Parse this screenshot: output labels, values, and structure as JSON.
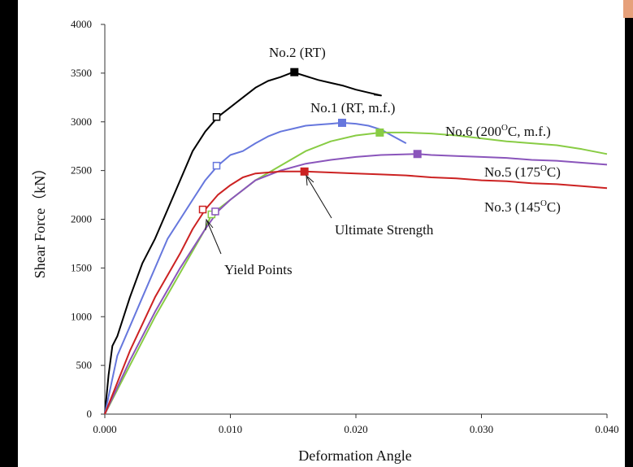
{
  "chart_data": {
    "type": "line",
    "xlabel": "Deformation Angle",
    "ylabel": "Shear Force（kN）",
    "xlim": [
      0,
      0.04
    ],
    "ylim": [
      0,
      4000
    ],
    "x_ticks": [
      "0.000",
      "0.010",
      "0.020",
      "0.030",
      "0.040"
    ],
    "y_ticks": [
      "0",
      "500",
      "1000",
      "1500",
      "2000",
      "2500",
      "3000",
      "3500",
      "4000"
    ],
    "grid": false,
    "series": [
      {
        "name": "No.2 (RT)",
        "color": "#000000",
        "points": [
          [
            0,
            0
          ],
          [
            0.0003,
            400
          ],
          [
            0.0006,
            700
          ],
          [
            0.001,
            800
          ],
          [
            0.002,
            1200
          ],
          [
            0.003,
            1550
          ],
          [
            0.004,
            1800
          ],
          [
            0.005,
            2100
          ],
          [
            0.006,
            2400
          ],
          [
            0.007,
            2700
          ],
          [
            0.008,
            2900
          ],
          [
            0.009,
            3050
          ],
          [
            0.01,
            3150
          ],
          [
            0.011,
            3250
          ],
          [
            0.012,
            3350
          ],
          [
            0.013,
            3420
          ],
          [
            0.014,
            3460
          ],
          [
            0.015,
            3510
          ],
          [
            0.016,
            3470
          ],
          [
            0.017,
            3430
          ],
          [
            0.018,
            3400
          ],
          [
            0.019,
            3370
          ],
          [
            0.02,
            3330
          ],
          [
            0.021,
            3300
          ],
          [
            0.022,
            3270
          ],
          [
            0.0215,
            3280
          ],
          [
            0.0215,
            3270
          ]
        ],
        "yield_point": [
          0.0089,
          3050
        ],
        "ultimate_point": [
          0.0151,
          3510
        ]
      },
      {
        "name": "No.1 (RT, m.f.)",
        "color": "#6677dd",
        "points": [
          [
            0,
            0
          ],
          [
            0.001,
            600
          ],
          [
            0.002,
            900
          ],
          [
            0.003,
            1200
          ],
          [
            0.004,
            1500
          ],
          [
            0.005,
            1800
          ],
          [
            0.006,
            2000
          ],
          [
            0.007,
            2200
          ],
          [
            0.008,
            2400
          ],
          [
            0.009,
            2550
          ],
          [
            0.01,
            2660
          ],
          [
            0.011,
            2700
          ],
          [
            0.012,
            2780
          ],
          [
            0.013,
            2850
          ],
          [
            0.014,
            2900
          ],
          [
            0.015,
            2930
          ],
          [
            0.016,
            2960
          ],
          [
            0.017,
            2970
          ],
          [
            0.018,
            2980
          ],
          [
            0.0189,
            2990
          ],
          [
            0.02,
            2980
          ],
          [
            0.021,
            2960
          ],
          [
            0.022,
            2920
          ],
          [
            0.023,
            2850
          ],
          [
            0.024,
            2780
          ]
        ],
        "yield_point": [
          0.0089,
          2550
        ],
        "ultimate_point": [
          0.0189,
          2990
        ]
      },
      {
        "name": "No.6 (200OC, m.f.)",
        "color": "#88cc44",
        "points": [
          [
            0,
            0
          ],
          [
            0.002,
            500
          ],
          [
            0.004,
            1000
          ],
          [
            0.006,
            1450
          ],
          [
            0.008,
            1900
          ],
          [
            0.0085,
            2050
          ],
          [
            0.01,
            2200
          ],
          [
            0.012,
            2400
          ],
          [
            0.014,
            2550
          ],
          [
            0.016,
            2700
          ],
          [
            0.018,
            2800
          ],
          [
            0.02,
            2860
          ],
          [
            0.022,
            2890
          ],
          [
            0.024,
            2890
          ],
          [
            0.026,
            2880
          ],
          [
            0.028,
            2860
          ],
          [
            0.03,
            2830
          ],
          [
            0.032,
            2800
          ],
          [
            0.034,
            2780
          ],
          [
            0.036,
            2760
          ],
          [
            0.038,
            2720
          ],
          [
            0.04,
            2670
          ]
        ],
        "yield_point": [
          0.0085,
          2050
        ],
        "ultimate_point": [
          0.0219,
          2890
        ]
      },
      {
        "name": "No.5 (175OC)",
        "color": "#8a55bb",
        "points": [
          [
            0,
            0
          ],
          [
            0.002,
            550
          ],
          [
            0.004,
            1050
          ],
          [
            0.006,
            1500
          ],
          [
            0.008,
            1900
          ],
          [
            0.009,
            2080
          ],
          [
            0.01,
            2200
          ],
          [
            0.012,
            2400
          ],
          [
            0.014,
            2500
          ],
          [
            0.016,
            2570
          ],
          [
            0.018,
            2610
          ],
          [
            0.02,
            2640
          ],
          [
            0.022,
            2660
          ],
          [
            0.0249,
            2670
          ],
          [
            0.026,
            2660
          ],
          [
            0.028,
            2650
          ],
          [
            0.03,
            2640
          ],
          [
            0.032,
            2630
          ],
          [
            0.034,
            2610
          ],
          [
            0.036,
            2600
          ],
          [
            0.038,
            2580
          ],
          [
            0.04,
            2560
          ]
        ],
        "yield_point": [
          0.0088,
          2080
        ],
        "ultimate_point": [
          0.0249,
          2670
        ]
      },
      {
        "name": "No.3 (145OC)",
        "color": "#cc2222",
        "points": [
          [
            0,
            0
          ],
          [
            0.002,
            650
          ],
          [
            0.004,
            1200
          ],
          [
            0.006,
            1650
          ],
          [
            0.007,
            1900
          ],
          [
            0.008,
            2100
          ],
          [
            0.009,
            2250
          ],
          [
            0.01,
            2350
          ],
          [
            0.011,
            2430
          ],
          [
            0.012,
            2470
          ],
          [
            0.013,
            2480
          ],
          [
            0.014,
            2490
          ],
          [
            0.016,
            2490
          ],
          [
            0.018,
            2480
          ],
          [
            0.02,
            2470
          ],
          [
            0.022,
            2460
          ],
          [
            0.024,
            2450
          ],
          [
            0.026,
            2430
          ],
          [
            0.028,
            2420
          ],
          [
            0.03,
            2400
          ],
          [
            0.032,
            2390
          ],
          [
            0.034,
            2370
          ],
          [
            0.036,
            2360
          ],
          [
            0.038,
            2340
          ],
          [
            0.04,
            2320
          ]
        ],
        "yield_point": [
          0.0078,
          2100
        ],
        "ultimate_point": [
          0.0159,
          2490
        ]
      }
    ],
    "series_labels": {
      "no2": "No.2 (RT)",
      "no1": "No.1 (RT, m.f.)",
      "no6_a": "No.6 (200",
      "no6_sup": "O",
      "no6_b": "C, m.f.)",
      "no5_a": "No.5 (175",
      "no5_sup": "O",
      "no5_b": "C)",
      "no3_a": "No.3 (145",
      "no3_sup": "O",
      "no3_b": "C)"
    },
    "annotations": {
      "ultimate": "Ultimate Strength",
      "yield": "Yield Points"
    }
  }
}
